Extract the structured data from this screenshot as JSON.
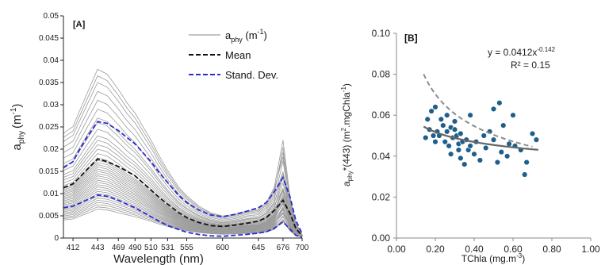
{
  "chart_data": [
    {
      "type": "line",
      "panel_label": "[A]",
      "xlabel": "Wavelength (nm)",
      "ylabel_main": "a",
      "ylabel_sub": "phy",
      "ylabel_unit": "(m",
      "ylabel_sup": "-1",
      "ylabel_close": ")",
      "ylim": [
        0,
        0.05
      ],
      "xlim": [
        400,
        700
      ],
      "grid": false,
      "x_ticks": [
        {
          "v": 412,
          "label": "412"
        },
        {
          "v": 443,
          "label": "443"
        },
        {
          "v": 469,
          "label": "469"
        },
        {
          "v": 490,
          "label": "490"
        },
        {
          "v": 510,
          "label": "510"
        },
        {
          "v": 531,
          "label": "531"
        },
        {
          "v": 555,
          "label": "555"
        },
        {
          "v": 600,
          "label": "600"
        },
        {
          "v": 645,
          "label": "645"
        },
        {
          "v": 676,
          "label": "676"
        },
        {
          "v": 700,
          "label": "700"
        }
      ],
      "y_ticks": [
        {
          "v": 0,
          "label": "0"
        },
        {
          "v": 0.005,
          "label": "0.005"
        },
        {
          "v": 0.01,
          "label": "0.01"
        },
        {
          "v": 0.015,
          "label": "0.015"
        },
        {
          "v": 0.02,
          "label": "0.02"
        },
        {
          "v": 0.025,
          "label": "0.025"
        },
        {
          "v": 0.03,
          "label": "0.03"
        },
        {
          "v": 0.035,
          "label": "0.035"
        },
        {
          "v": 0.04,
          "label": "0.04"
        },
        {
          "v": 0.045,
          "label": "0.045"
        },
        {
          "v": 0.05,
          "label": "0.05"
        }
      ],
      "legend_position": "top-right",
      "legend": [
        {
          "main": "a",
          "sub": "phy",
          "unit": " (m",
          "sup": "-1",
          "close": ")",
          "color": "#a0a0a0",
          "dash": ""
        },
        {
          "main": "Mean",
          "sub": "",
          "unit": "",
          "sup": "",
          "close": "",
          "color": "#111111",
          "dash": "6,3"
        },
        {
          "main": "Stand. Dev.",
          "sub": "",
          "unit": "",
          "sup": "",
          "close": "",
          "color": "#2b2bd0",
          "dash": "6,3"
        }
      ],
      "x": [
        400,
        412,
        420,
        430,
        443,
        455,
        469,
        480,
        490,
        500,
        510,
        520,
        531,
        545,
        555,
        570,
        585,
        600,
        615,
        630,
        645,
        655,
        665,
        676,
        685,
        692,
        700
      ],
      "sample_peaks": [
        0.038,
        0.0365,
        0.035,
        0.033,
        0.031,
        0.029,
        0.027,
        0.026,
        0.0245,
        0.023,
        0.022,
        0.021,
        0.02,
        0.019,
        0.018,
        0.0175,
        0.017,
        0.0165,
        0.016,
        0.0155,
        0.015,
        0.0145,
        0.014,
        0.0135,
        0.013,
        0.0125,
        0.012,
        0.0115,
        0.011,
        0.0105,
        0.01,
        0.0095,
        0.009,
        0.0085,
        0.008,
        0.0075,
        0.007,
        0.0065
      ],
      "sample_red_ratio": [
        0.58,
        0.5,
        0.55,
        0.62,
        0.48,
        0.6,
        0.52,
        0.57,
        0.45,
        0.54,
        0.63,
        0.5,
        0.56,
        0.47,
        0.6,
        0.53,
        0.58,
        0.51,
        0.55,
        0.49,
        0.6,
        0.54,
        0.57,
        0.5,
        0.52,
        0.56,
        0.48,
        0.55,
        0.6,
        0.52,
        0.57,
        0.5,
        0.54,
        0.58,
        0.49,
        0.56,
        0.53,
        0.6
      ],
      "sample_shape": [
        0.62,
        0.66,
        0.75,
        0.86,
        1.0,
        0.97,
        0.88,
        0.8,
        0.74,
        0.66,
        0.58,
        0.49,
        0.4,
        0.3,
        0.25,
        0.19,
        0.15,
        0.13,
        0.14,
        0.16,
        0.17,
        0.21,
        0.3,
        0.0,
        0.24,
        0.09,
        0.02
      ],
      "mean": [
        0.0113,
        0.0122,
        0.0136,
        0.0155,
        0.0178,
        0.0172,
        0.0161,
        0.015,
        0.014,
        0.0124,
        0.0108,
        0.0092,
        0.0076,
        0.0057,
        0.0046,
        0.0035,
        0.0028,
        0.0026,
        0.0029,
        0.0033,
        0.0038,
        0.0046,
        0.0062,
        0.0085,
        0.0055,
        0.0022,
        0.0005
      ],
      "sd_upper": [
        0.0158,
        0.0172,
        0.0198,
        0.0228,
        0.0262,
        0.0258,
        0.0242,
        0.0226,
        0.0212,
        0.0192,
        0.0172,
        0.0148,
        0.0125,
        0.0096,
        0.008,
        0.0063,
        0.0052,
        0.0048,
        0.0053,
        0.006,
        0.0068,
        0.008,
        0.0104,
        0.0136,
        0.0092,
        0.004,
        0.001
      ],
      "sd_lower": [
        0.0068,
        0.0072,
        0.0078,
        0.0086,
        0.0097,
        0.0094,
        0.0085,
        0.0076,
        0.0068,
        0.0058,
        0.0048,
        0.0038,
        0.0028,
        0.0019,
        0.0013,
        0.0008,
        0.0005,
        0.0004,
        0.0006,
        0.0008,
        0.0011,
        0.0014,
        0.0022,
        0.0036,
        0.002,
        0.0006,
        0.0001
      ]
    },
    {
      "type": "scatter",
      "panel_label": "[B]",
      "xlabel": "TChla (mg.m",
      "xlabel_sup": "-3",
      "xlabel_close": ")",
      "ylabel_main": "a",
      "ylabel_sub": "phy",
      "ylabel_rest": "*(443) (m",
      "ylabel_sup1": "2",
      "ylabel_mid": ".mgChla",
      "ylabel_sup2": "-1",
      "ylabel_close": ")",
      "equation_main": "y = 0.0412x",
      "equation_sup": "-0.142",
      "r2": "R² = 0.15",
      "xlim": [
        0,
        1.0
      ],
      "ylim": [
        0,
        0.1
      ],
      "grid": false,
      "x_ticks": [
        {
          "v": 0,
          "label": "0.00"
        },
        {
          "v": 0.2,
          "label": "0.20"
        },
        {
          "v": 0.4,
          "label": "0.40"
        },
        {
          "v": 0.6,
          "label": "0.60"
        },
        {
          "v": 0.8,
          "label": "0.80"
        },
        {
          "v": 1.0,
          "label": "1.00"
        }
      ],
      "y_ticks": [
        {
          "v": 0,
          "label": "0.00"
        },
        {
          "v": 0.02,
          "label": "0.02"
        },
        {
          "v": 0.04,
          "label": "0.04"
        },
        {
          "v": 0.06,
          "label": "0.06"
        },
        {
          "v": 0.08,
          "label": "0.08"
        },
        {
          "v": 0.1,
          "label": "0.10"
        }
      ],
      "point_color": "#1f5f8b",
      "points": [
        [
          0.15,
          0.049
        ],
        [
          0.16,
          0.058
        ],
        [
          0.17,
          0.053
        ],
        [
          0.18,
          0.062
        ],
        [
          0.19,
          0.05
        ],
        [
          0.2,
          0.064
        ],
        [
          0.2,
          0.047
        ],
        [
          0.21,
          0.052
        ],
        [
          0.22,
          0.05
        ],
        [
          0.23,
          0.058
        ],
        [
          0.24,
          0.055
        ],
        [
          0.25,
          0.047
        ],
        [
          0.26,
          0.052
        ],
        [
          0.26,
          0.06
        ],
        [
          0.27,
          0.045
        ],
        [
          0.28,
          0.054
        ],
        [
          0.28,
          0.041
        ],
        [
          0.29,
          0.049
        ],
        [
          0.3,
          0.057
        ],
        [
          0.3,
          0.053
        ],
        [
          0.31,
          0.05
        ],
        [
          0.32,
          0.046
        ],
        [
          0.32,
          0.043
        ],
        [
          0.33,
          0.051
        ],
        [
          0.33,
          0.039
        ],
        [
          0.34,
          0.047
        ],
        [
          0.35,
          0.036
        ],
        [
          0.36,
          0.048
        ],
        [
          0.37,
          0.043
        ],
        [
          0.38,
          0.06
        ],
        [
          0.38,
          0.045
        ],
        [
          0.4,
          0.041
        ],
        [
          0.41,
          0.047
        ],
        [
          0.43,
          0.038
        ],
        [
          0.45,
          0.05
        ],
        [
          0.46,
          0.044
        ],
        [
          0.48,
          0.052
        ],
        [
          0.5,
          0.063
        ],
        [
          0.5,
          0.048
        ],
        [
          0.52,
          0.037
        ],
        [
          0.53,
          0.066
        ],
        [
          0.54,
          0.042
        ],
        [
          0.55,
          0.055
        ],
        [
          0.57,
          0.04
        ],
        [
          0.58,
          0.046
        ],
        [
          0.6,
          0.06
        ],
        [
          0.61,
          0.045
        ],
        [
          0.64,
          0.043
        ],
        [
          0.66,
          0.031
        ],
        [
          0.67,
          0.037
        ],
        [
          0.7,
          0.051
        ],
        [
          0.72,
          0.048
        ]
      ],
      "fit": {
        "a": 0.0412,
        "b": -0.142,
        "x_range": [
          0.14,
          0.73
        ],
        "color": "#666666"
      },
      "reference_curve": {
        "x_range": [
          0.14,
          0.7
        ],
        "color": "#8c8c8c",
        "dash": "6,4",
        "a": 0.0392,
        "b": -0.363
      }
    }
  ]
}
